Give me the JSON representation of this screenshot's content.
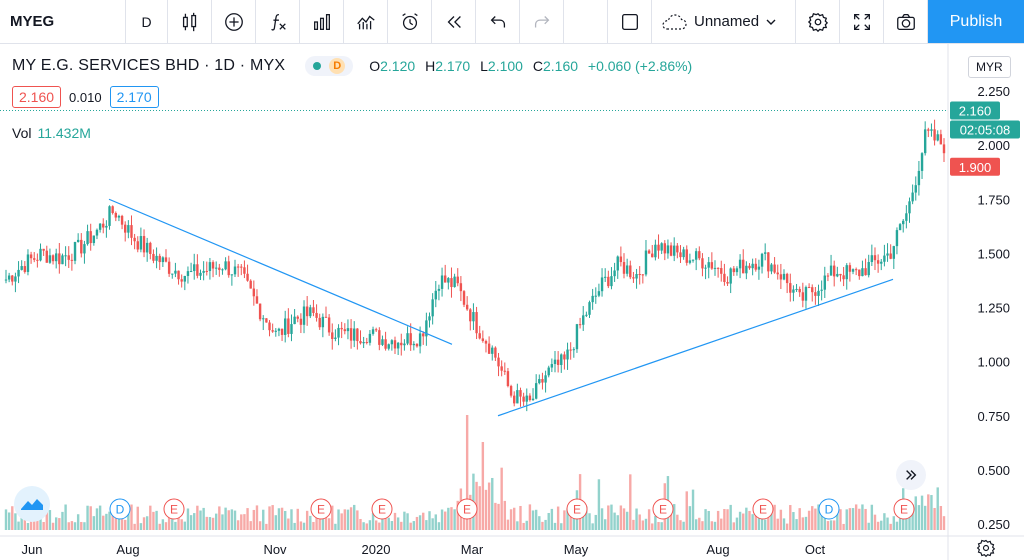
{
  "toolbar": {
    "symbol": "MYEG",
    "interval": "D",
    "layout_name": "Unnamed",
    "publish_label": "Publish",
    "icons": [
      "candles-icon",
      "add-indicator-icon",
      "fx-icon",
      "templates-icon",
      "compare-icon",
      "alert-icon",
      "replay-icon",
      "undo-icon",
      "redo-icon",
      "square-icon",
      "cloud-icon",
      "settings-icon",
      "fullscreen-icon",
      "camera-icon"
    ]
  },
  "legend": {
    "name": "MY E.G. SERVICES BHD · 1D · MYX",
    "status_d": "D",
    "o_label": "O",
    "o_value": "2.120",
    "h_label": "H",
    "h_value": "2.170",
    "l_label": "L",
    "l_value": "2.100",
    "c_label": "C",
    "c_value": "2.160",
    "change": "+0.060 (+2.86%)"
  },
  "bidask": {
    "bid": "2.160",
    "spread": "0.010",
    "ask": "2.170"
  },
  "volume": {
    "label": "Vol",
    "value": "11.432M"
  },
  "currency": "MYR",
  "price_axis": {
    "ticks": [
      "2.250",
      "2.000",
      "1.750",
      "1.500",
      "1.250",
      "1.000",
      "0.750",
      "0.500",
      "0.250"
    ],
    "last_price": "2.160",
    "countdown": "02:05:08",
    "low_marker": "1.900"
  },
  "time_axis": [
    "Jun",
    "Aug",
    "Nov",
    "2020",
    "Mar",
    "May",
    "Aug",
    "Oct"
  ],
  "events": [
    {
      "type": "D"
    },
    {
      "type": "E"
    },
    {
      "type": "E"
    },
    {
      "type": "E"
    },
    {
      "type": "E"
    },
    {
      "type": "E"
    },
    {
      "type": "E"
    },
    {
      "type": "E"
    },
    {
      "type": "D"
    },
    {
      "type": "E"
    }
  ],
  "colors": {
    "up": "#26a69a",
    "down": "#ef5350",
    "trend": "#2196f3",
    "publish": "#2196f3"
  },
  "chart_data": {
    "type": "candlestick",
    "ylim": [
      0.25,
      2.25
    ],
    "anchor_closes": [
      1.38,
      1.45,
      1.5,
      1.48,
      1.52,
      1.6,
      1.7,
      1.58,
      1.5,
      1.44,
      1.4,
      1.42,
      1.45,
      1.4,
      1.25,
      1.12,
      1.2,
      1.22,
      1.15,
      1.12,
      1.13,
      1.1,
      1.1,
      1.12,
      1.38,
      1.35,
      1.18,
      1.05,
      0.85,
      0.8,
      0.95,
      1.0,
      1.2,
      1.35,
      1.45,
      1.4,
      1.55,
      1.5,
      1.48,
      1.46,
      1.4,
      1.45,
      1.48,
      1.4,
      1.28,
      1.35,
      1.42,
      1.4,
      1.45,
      1.5,
      1.7,
      2.05,
      2.0
    ],
    "trendlines": [
      {
        "start": [
          "Jul",
          1.75
        ],
        "end": [
          "Feb",
          1.08
        ]
      },
      {
        "start": [
          "Mar",
          0.75
        ],
        "end": [
          "Nov",
          1.38
        ]
      }
    ]
  }
}
